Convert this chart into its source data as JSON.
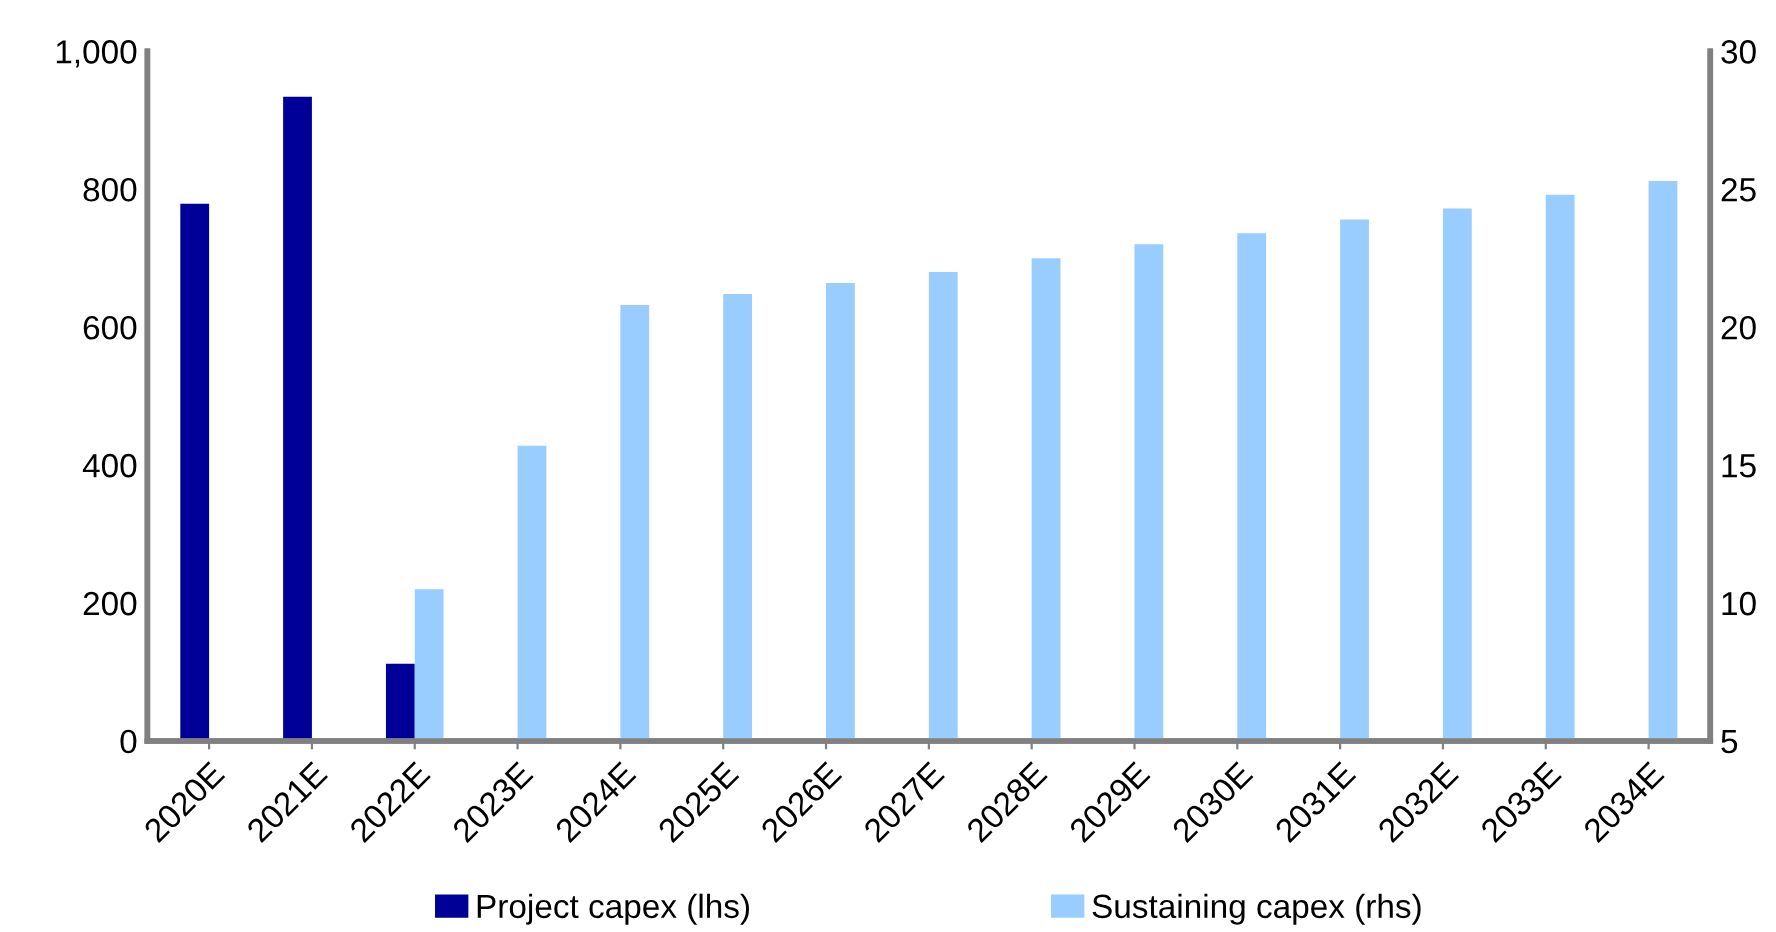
{
  "chart_data": {
    "type": "bar",
    "categories": [
      "2020E",
      "2021E",
      "2022E",
      "2023E",
      "2024E",
      "2025E",
      "2026E",
      "2027E",
      "2028E",
      "2029E",
      "2030E",
      "2031E",
      "2032E",
      "2033E",
      "2034E"
    ],
    "series": [
      {
        "name": "Project capex (lhs)",
        "color": "#000099",
        "values": [
          779,
          934,
          112,
          null,
          null,
          null,
          null,
          null,
          null,
          null,
          null,
          null,
          null,
          null,
          null
        ]
      },
      {
        "name": "Sustaining capex (rhs)",
        "color": "#99ccff",
        "axis": "y2",
        "values": [
          null,
          null,
          10.5,
          15.7,
          20.8,
          21.2,
          21.6,
          22.0,
          22.5,
          23.0,
          23.4,
          23.9,
          24.3,
          24.8,
          25.3
        ]
      }
    ],
    "ylim": [
      0,
      1000
    ],
    "yticks": [
      0,
      200,
      400,
      600,
      800,
      {
        "value": 1000,
        "label": "1,000"
      }
    ],
    "y2lim": [
      5,
      30
    ],
    "y2ticks": [
      5,
      10,
      15,
      20,
      25,
      30
    ],
    "grid": false,
    "legend": "bottom"
  }
}
